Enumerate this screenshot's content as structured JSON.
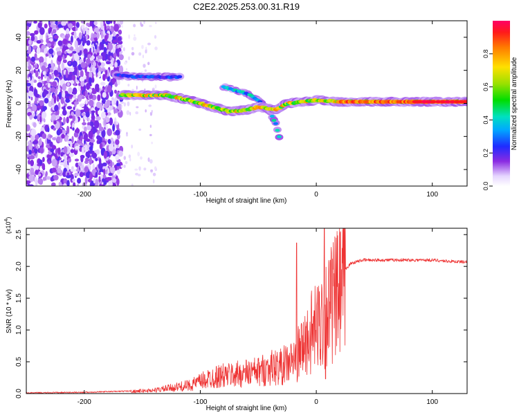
{
  "figure_title": "C2E2.2025.253.00.31.R19",
  "chart_data": [
    {
      "type": "heatmap",
      "title": "C2E2.2025.253.00.31.R19",
      "xlabel": "Height of straight line (km)",
      "ylabel": "Frequency (Hz)",
      "xlim": [
        -250,
        130
      ],
      "ylim": [
        -50,
        50
      ],
      "x_ticks": [
        -200,
        -100,
        0,
        100
      ],
      "y_ticks": [
        -40,
        -20,
        0,
        20,
        40
      ],
      "colorbar": {
        "label": "Normalized spectral amplitude",
        "range": [
          0.0,
          1.0
        ],
        "ticks": [
          0.0,
          0.2,
          0.4,
          0.6,
          0.8
        ],
        "tick_labels": [
          "0.0",
          "0.2",
          "0.4",
          "0.6",
          "0.8"
        ]
      },
      "features": [
        {
          "name": "noise-region",
          "x_range": [
            -250,
            -168
          ],
          "y_range": [
            -50,
            50
          ],
          "amplitude": 0.12
        },
        {
          "name": "upper-branch",
          "points": [
            [
              -172,
              17
            ],
            [
              -155,
              16
            ],
            [
              -140,
              16
            ],
            [
              -130,
              16
            ],
            [
              -118,
              16
            ]
          ],
          "amplitude": 0.3
        },
        {
          "name": "main-trace",
          "points": [
            [
              -168,
              5
            ],
            [
              -150,
              5
            ],
            [
              -130,
              5
            ],
            [
              -110,
              2
            ],
            [
              -90,
              -2
            ],
            [
              -75,
              -5
            ],
            [
              -60,
              -4
            ],
            [
              -50,
              -2
            ],
            [
              -35,
              -4
            ],
            [
              -25,
              0
            ],
            [
              -10,
              1
            ],
            [
              0,
              2
            ],
            [
              20,
              1
            ],
            [
              60,
              1
            ],
            [
              100,
              1
            ],
            [
              130,
              1
            ]
          ],
          "amplitude": 0.85
        },
        {
          "name": "lower-branch",
          "points": [
            [
              -80,
              10
            ],
            [
              -70,
              8
            ],
            [
              -60,
              6
            ],
            [
              -50,
              2
            ],
            [
              -40,
              -5
            ],
            [
              -35,
              -12
            ],
            [
              -32,
              -20
            ]
          ],
          "amplitude": 0.45
        }
      ]
    },
    {
      "type": "line",
      "title": "",
      "xlabel": "Height of straight line (km)",
      "ylabel": "SNR (10 * v/v)",
      "y_multiplier": "(x10^4)",
      "y_multiplier_base": "(x10",
      "y_multiplier_exp": "4",
      "y_multiplier_close": ")",
      "xlim": [
        -250,
        130
      ],
      "ylim": [
        0,
        2.6
      ],
      "x_ticks": [
        -200,
        -100,
        0,
        100
      ],
      "y_ticks": [
        0.0,
        0.5,
        1.0,
        1.5,
        2.0,
        2.5
      ],
      "y_tick_labels": [
        "0.0",
        "0.5",
        "1.0",
        "1.5",
        "2.0",
        "2.5"
      ],
      "color": "#ee3333",
      "series": [
        {
          "name": "SNR",
          "x": [
            -250,
            -200,
            -160,
            -140,
            -120,
            -110,
            -100,
            -90,
            -80,
            -70,
            -60,
            -50,
            -40,
            -30,
            -20,
            -15,
            -10,
            -5,
            0,
            5,
            10,
            20,
            30,
            40,
            60,
            80,
            100,
            115,
            130
          ],
          "y": [
            0.01,
            0.02,
            0.04,
            0.06,
            0.12,
            0.15,
            0.22,
            0.3,
            0.33,
            0.35,
            0.38,
            0.4,
            0.48,
            0.5,
            0.6,
            0.75,
            0.9,
            1.1,
            1.2,
            1.4,
            1.55,
            1.85,
            2.05,
            2.1,
            2.1,
            2.1,
            2.1,
            2.08,
            2.07
          ]
        }
      ],
      "annotations": [
        {
          "x": -17,
          "y": 2.37,
          "label": "spike"
        },
        {
          "x": 7,
          "y": 2.6,
          "label": "spike"
        },
        {
          "x": 8,
          "y": 0.23,
          "label": "dip"
        }
      ]
    }
  ]
}
